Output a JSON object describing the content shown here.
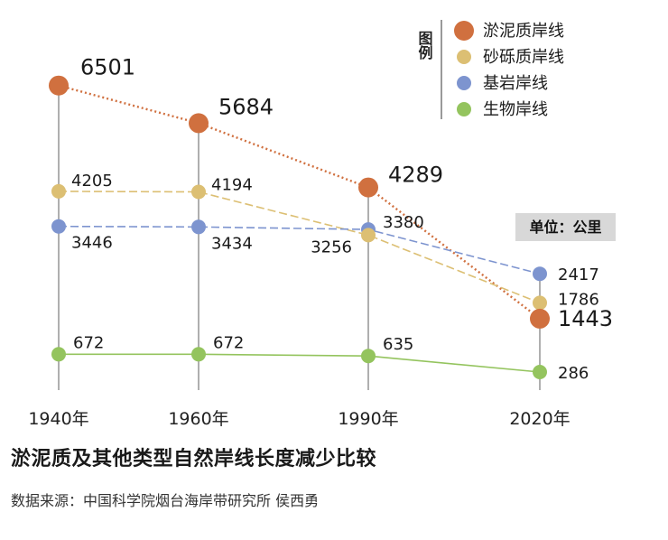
{
  "chart_data": {
    "type": "line",
    "title": "淤泥质及其他类型自然岸线长度减少比较",
    "source": "数据来源：中国科学院烟台海岸带研究所 侯西勇",
    "unit": "单位：公里",
    "legend_title": "图例",
    "legend_position": "top-right",
    "categories": [
      "1940年",
      "1960年",
      "1990年",
      "2020年"
    ],
    "series": [
      {
        "name": "淤泥质岸线",
        "color": "#d0703f",
        "line_style": "dotted",
        "values": [
          6501,
          5684,
          4289,
          1443
        ],
        "labels": [
          "6501",
          "5684",
          "4289",
          "1443"
        ]
      },
      {
        "name": "砂砾质岸线",
        "color": "#dcbf73",
        "line_style": "dashed",
        "values": [
          4205,
          4194,
          3256,
          1786
        ],
        "labels": [
          "4205",
          "4194",
          "3256",
          "1786"
        ]
      },
      {
        "name": "基岩岸线",
        "color": "#7d94cf",
        "line_style": "dashed",
        "values": [
          3446,
          3434,
          3380,
          2417
        ],
        "labels": [
          "3446",
          "3434",
          "3380",
          "2417"
        ]
      },
      {
        "name": "生物岸线",
        "color": "#94c45e",
        "line_style": "solid",
        "values": [
          672,
          672,
          635,
          286
        ],
        "labels": [
          "672",
          "672",
          "635",
          "286"
        ]
      }
    ],
    "grid": false
  }
}
